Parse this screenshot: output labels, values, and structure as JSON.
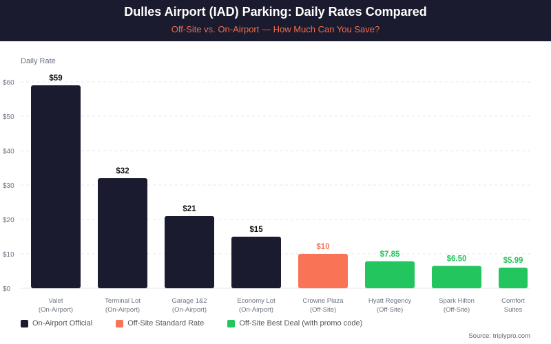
{
  "header": {
    "title": "Dulles Airport (IAD) Parking: Daily Rates Compared",
    "subtitle": "Off-Site vs. On-Airport — How Much Can You Save?"
  },
  "source": "Source: triplypro.com",
  "colors": {
    "on_airport": "#1b1b2f",
    "off_site_standard": "#f97356",
    "off_site_best": "#22c55e"
  },
  "chart_data": {
    "type": "bar",
    "ylabel": "Daily Rate",
    "ylim": [
      0,
      60
    ],
    "yticks": [
      "$0",
      "$10",
      "$20",
      "$30",
      "$40",
      "$50",
      "$60"
    ],
    "grid": true,
    "legend_placement": "bottom",
    "categories": [
      [
        "Valet",
        "(On-Airport)"
      ],
      [
        "Terminal Lot",
        "(On-Airport)"
      ],
      [
        "Garage 1&2",
        "(On-Airport)"
      ],
      [
        "Economy Lot",
        "(On-Airport)"
      ],
      [
        "Crowne Plaza",
        "(Off-Site)"
      ],
      [
        "Hyatt Regency",
        "(Off-Site)"
      ],
      [
        "Spark Hilton",
        "(Off-Site)"
      ],
      [
        "Comfort",
        "Suites"
      ]
    ],
    "values": [
      59,
      32,
      21,
      15,
      10,
      7.85,
      6.5,
      5.99
    ],
    "value_labels": [
      "$59",
      "$32",
      "$21",
      "$15",
      "$10",
      "$7.85",
      "$6.50",
      "$5.99"
    ],
    "groups": [
      "on_airport",
      "on_airport",
      "on_airport",
      "on_airport",
      "off_site_standard",
      "off_site_best",
      "off_site_best",
      "off_site_best"
    ],
    "legend": [
      {
        "key": "on_airport",
        "label": "On-Airport Official"
      },
      {
        "key": "off_site_standard",
        "label": "Off-Site Standard Rate"
      },
      {
        "key": "off_site_best",
        "label": "Off-Site Best Deal (with promo code)"
      }
    ]
  }
}
